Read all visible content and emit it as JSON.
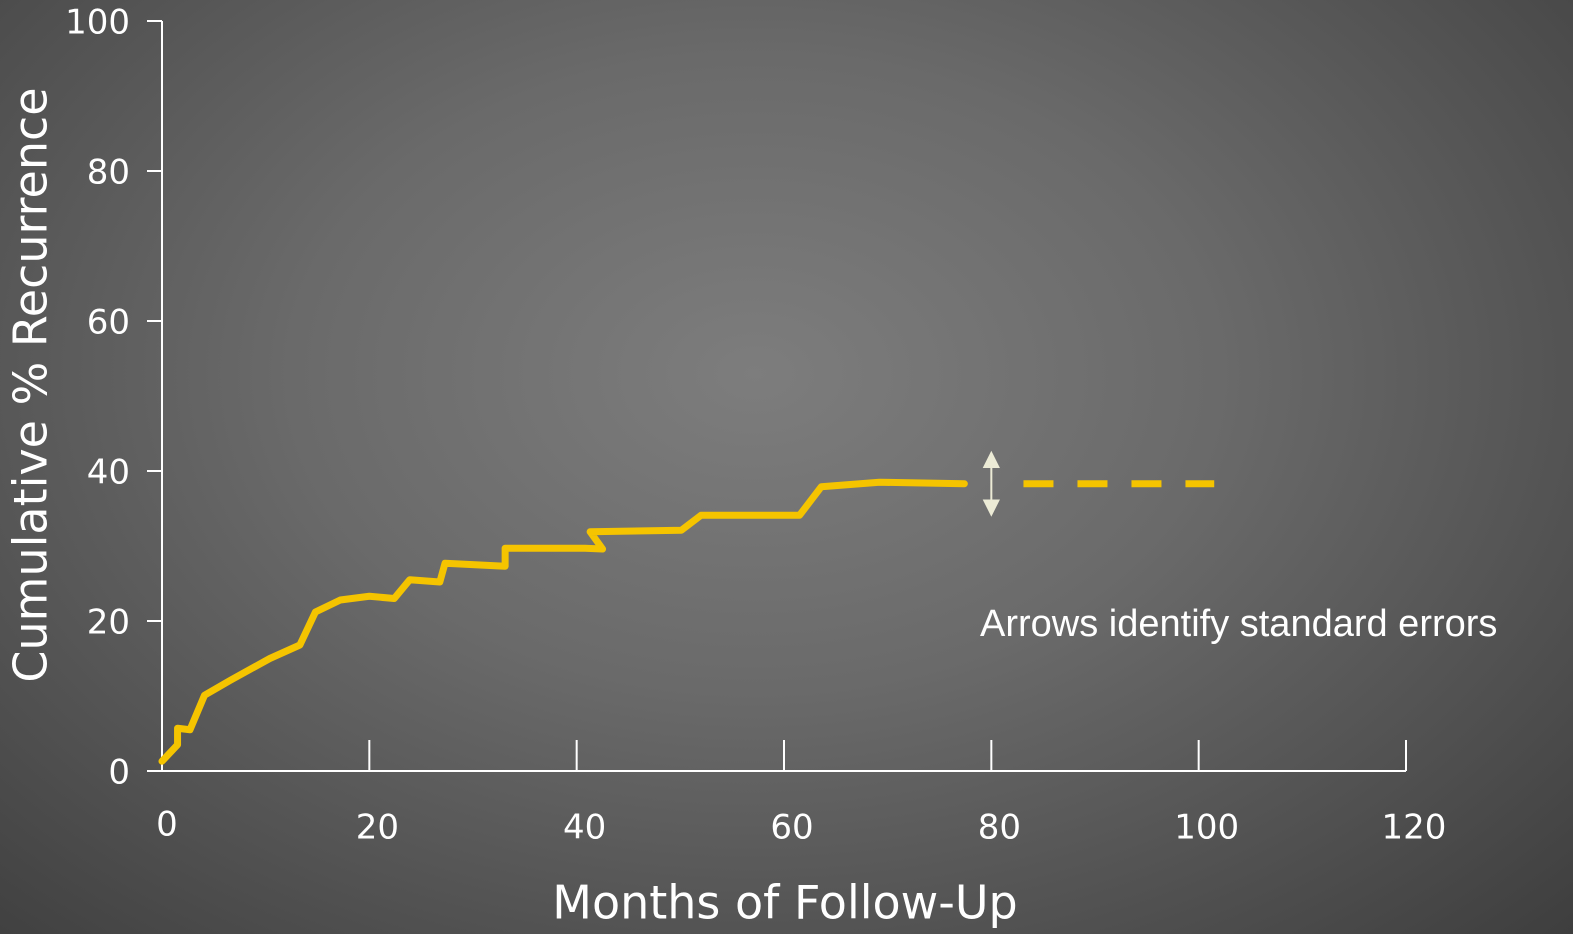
{
  "chart_data": {
    "type": "line",
    "xlabel": "Months of Follow-Up",
    "ylabel": "Cumulative % Recurrence",
    "annotation": "Arrows identify standard errors",
    "xlim": [
      0,
      120
    ],
    "xticks": [
      0,
      20,
      40,
      60,
      80,
      100,
      120
    ],
    "ylim": [
      0,
      100
    ],
    "yticks": [
      0,
      20,
      40,
      60,
      80,
      100
    ],
    "series": [
      {
        "color": "#f5c400",
        "dashed": false,
        "x": [
          0,
          1.5,
          1.5,
          2.7,
          4.1,
          6.6,
          10.4,
          13.3,
          14.8,
          17.2,
          20,
          22.4,
          23.9,
          26.8,
          27.3,
          33.1,
          33.1,
          40.8,
          42.5,
          41.3,
          50.1,
          52,
          61.5,
          63.6,
          69.2,
          77.4
        ],
        "values": [
          1.3,
          3.5,
          5.7,
          5.5,
          10.1,
          12.1,
          15,
          16.8,
          21.2,
          22.8,
          23.3,
          23,
          25.5,
          25.2,
          27.7,
          27.3,
          29.7,
          29.7,
          29.6,
          31.9,
          32.1,
          34.1,
          34.1,
          37.9,
          38.5,
          38.3
        ]
      },
      {
        "color": "#f5c400",
        "dashed": true,
        "x": [
          83.1,
          101.5
        ],
        "values": [
          38.3,
          38.3
        ]
      }
    ],
    "error_bar": {
      "x": 80,
      "value": 38.3,
      "error": 4.1,
      "color": "#ecebd6"
    }
  }
}
